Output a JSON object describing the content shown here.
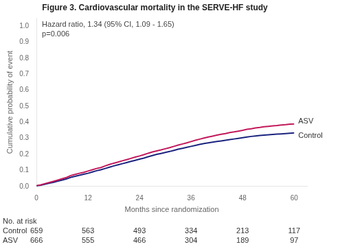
{
  "chart_data": {
    "type": "line",
    "title": "Figure 3. Cardiovascular mortality in the SERVE-HF study",
    "subtitle": [
      "Hazard ratio, 1.34 (95% CI, 1.09 - 1.65)",
      "p=0.006"
    ],
    "x_label": "Months since randomization",
    "y_label": "Cumulative probability of event",
    "x": [
      0,
      1,
      2,
      3,
      4,
      5,
      6,
      7,
      8,
      9,
      10,
      11,
      12,
      13,
      14,
      15,
      16,
      17,
      18,
      19,
      20,
      21,
      22,
      23,
      24,
      25,
      26,
      27,
      28,
      29,
      30,
      31,
      32,
      33,
      34,
      35,
      36,
      37,
      38,
      39,
      40,
      41,
      42,
      43,
      44,
      45,
      46,
      47,
      48,
      49,
      50,
      51,
      52,
      53,
      54,
      55,
      56,
      57,
      58,
      59,
      60
    ],
    "series": [
      {
        "name": "ASV",
        "color": "#C2185B",
        "values": [
          0.005,
          0.01,
          0.018,
          0.025,
          0.032,
          0.04,
          0.048,
          0.056,
          0.068,
          0.075,
          0.082,
          0.088,
          0.096,
          0.104,
          0.112,
          0.118,
          0.128,
          0.137,
          0.145,
          0.152,
          0.16,
          0.167,
          0.175,
          0.183,
          0.19,
          0.198,
          0.207,
          0.215,
          0.222,
          0.228,
          0.235,
          0.242,
          0.25,
          0.258,
          0.265,
          0.272,
          0.28,
          0.288,
          0.295,
          0.302,
          0.308,
          0.314,
          0.32,
          0.325,
          0.33,
          0.336,
          0.34,
          0.345,
          0.35,
          0.356,
          0.36,
          0.365,
          0.368,
          0.372,
          0.375,
          0.378,
          0.38,
          0.383,
          0.385,
          0.388,
          0.39
        ]
      },
      {
        "name": "Control",
        "color": "#1A237E",
        "values": [
          0.003,
          0.008,
          0.014,
          0.02,
          0.026,
          0.033,
          0.04,
          0.047,
          0.057,
          0.063,
          0.07,
          0.076,
          0.082,
          0.09,
          0.098,
          0.104,
          0.112,
          0.12,
          0.128,
          0.135,
          0.142,
          0.149,
          0.156,
          0.163,
          0.17,
          0.177,
          0.185,
          0.193,
          0.2,
          0.206,
          0.212,
          0.218,
          0.225,
          0.232,
          0.238,
          0.244,
          0.25,
          0.256,
          0.262,
          0.268,
          0.272,
          0.276,
          0.28,
          0.284,
          0.288,
          0.292,
          0.296,
          0.3,
          0.304,
          0.308,
          0.312,
          0.315,
          0.318,
          0.32,
          0.322,
          0.324,
          0.326,
          0.328,
          0.33,
          0.332,
          0.334
        ]
      }
    ],
    "xlim": [
      0,
      63
    ],
    "xticks": [
      0,
      12,
      24,
      36,
      48,
      60
    ],
    "ylim": [
      0,
      1.05
    ],
    "yticks": [
      {
        "value": 0.0,
        "label": "0.0"
      },
      0.1,
      0.2,
      0.3,
      0.4,
      0.5,
      0.6,
      0.7,
      0.8,
      0.9,
      {
        "value": 1.0,
        "label": "1.0"
      }
    ],
    "grid": false,
    "at_risk": {
      "label": "No. at risk",
      "x": [
        0,
        12,
        24,
        36,
        48,
        60
      ],
      "rows": [
        {
          "name": "Control",
          "values": [
            659,
            563,
            493,
            334,
            213,
            117
          ]
        },
        {
          "name": "ASV",
          "values": [
            666,
            555,
            466,
            304,
            189,
            97
          ]
        }
      ]
    }
  }
}
